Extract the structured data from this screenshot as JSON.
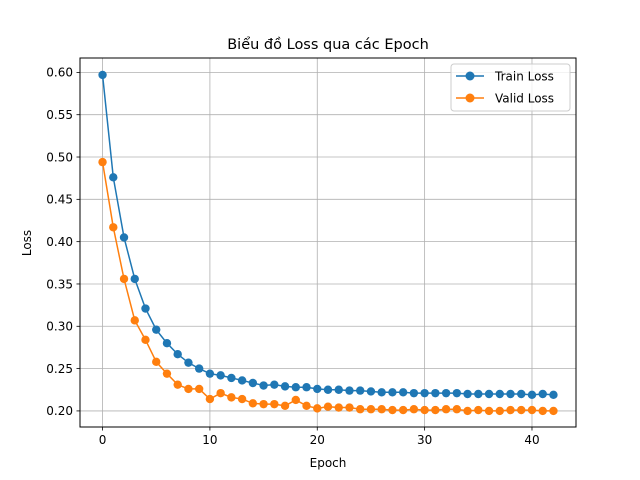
{
  "chart_data": {
    "type": "line",
    "title": "Biểu đồ Loss qua các Epoch",
    "xlabel": "Epoch",
    "ylabel": "Loss",
    "xlim": [
      -2.1,
      44.1
    ],
    "ylim": [
      0.181,
      0.617
    ],
    "xticks": [
      0,
      10,
      20,
      30,
      40
    ],
    "yticks": [
      0.2,
      0.25,
      0.3,
      0.35,
      0.4,
      0.45,
      0.5,
      0.55,
      0.6
    ],
    "ytick_labels": [
      "0.20",
      "0.25",
      "0.30",
      "0.35",
      "0.40",
      "0.45",
      "0.50",
      "0.55",
      "0.60"
    ],
    "grid": true,
    "legend_position": "top-right",
    "x": [
      0,
      1,
      2,
      3,
      4,
      5,
      6,
      7,
      8,
      9,
      10,
      11,
      12,
      13,
      14,
      15,
      16,
      17,
      18,
      19,
      20,
      21,
      22,
      23,
      24,
      25,
      26,
      27,
      28,
      29,
      30,
      31,
      32,
      33,
      34,
      35,
      36,
      37,
      38,
      39,
      40,
      41,
      42
    ],
    "series": [
      {
        "name": "Train Loss",
        "color": "#1f77b4",
        "values": [
          0.597,
          0.476,
          0.405,
          0.356,
          0.321,
          0.296,
          0.28,
          0.267,
          0.257,
          0.25,
          0.244,
          0.242,
          0.239,
          0.236,
          0.233,
          0.23,
          0.231,
          0.229,
          0.228,
          0.228,
          0.226,
          0.225,
          0.225,
          0.224,
          0.224,
          0.223,
          0.222,
          0.222,
          0.222,
          0.221,
          0.221,
          0.221,
          0.221,
          0.221,
          0.22,
          0.22,
          0.22,
          0.22,
          0.22,
          0.22,
          0.219,
          0.22,
          0.219
        ]
      },
      {
        "name": "Valid Loss",
        "color": "#ff7f0e",
        "values": [
          0.494,
          0.417,
          0.356,
          0.307,
          0.284,
          0.258,
          0.244,
          0.231,
          0.226,
          0.226,
          0.214,
          0.221,
          0.216,
          0.214,
          0.209,
          0.208,
          0.208,
          0.206,
          0.213,
          0.206,
          0.203,
          0.205,
          0.204,
          0.204,
          0.202,
          0.202,
          0.202,
          0.201,
          0.201,
          0.202,
          0.201,
          0.201,
          0.202,
          0.202,
          0.2,
          0.201,
          0.2,
          0.2,
          0.201,
          0.201,
          0.201,
          0.2,
          0.2
        ]
      }
    ]
  }
}
